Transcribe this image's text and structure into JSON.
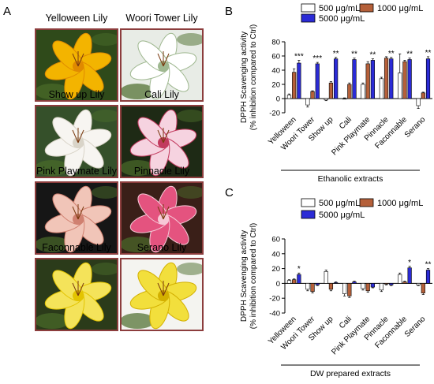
{
  "panels": {
    "a": "A",
    "b": "B",
    "c": "C"
  },
  "lilies": [
    {
      "caption": "Yelloween Lily",
      "colors": [
        "#2f4a1a",
        "#f3b400",
        "#e08a00"
      ]
    },
    {
      "caption": "Woori Tower Lily",
      "colors": [
        "#e8ece6",
        "#ffffff",
        "#9fb890"
      ]
    },
    {
      "caption": "Show up Lily",
      "colors": [
        "#35502a",
        "#f7f5f1",
        "#d9d4c8"
      ]
    },
    {
      "caption": "Cali Lily",
      "colors": [
        "#1e2a15",
        "#f6d3e0",
        "#c23a5e"
      ]
    },
    {
      "caption": "Pink Playmate Lily",
      "colors": [
        "#161616",
        "#f1c5b8",
        "#d08070"
      ]
    },
    {
      "caption": "Pinnacle Lily",
      "colors": [
        "#3a1f18",
        "#e4537f",
        "#f6c8d6"
      ]
    },
    {
      "caption": "Faconnable Lily",
      "colors": [
        "#2b3b1a",
        "#f4e35a",
        "#e3c400"
      ]
    },
    {
      "caption": "Serano Lily",
      "colors": [
        "#f4f4f0",
        "#f2df3c",
        "#d3b000"
      ]
    }
  ],
  "chart_data": [
    {
      "type": "bar",
      "panel": "B",
      "categories": [
        "Yelloween",
        "Woori Tower",
        "Show up",
        "Cali",
        "Pink Playmate",
        "Pinnacle",
        "Faconnable",
        "Serano"
      ],
      "ylabel": "DPPH Scavenging activity (% inhibition compared to Ctrl)",
      "ylabel_lines": [
        "DPPH Scavenging activity",
        "(% inhibition compared to Ctrl)"
      ],
      "xlabel": "Ethanolic extracts",
      "ylim": [
        -20,
        80
      ],
      "yticks": [
        -20,
        0,
        20,
        40,
        60,
        80
      ],
      "legend": "top",
      "series": [
        {
          "name": "500 μg/mL",
          "color": "#ffffff",
          "values": [
            5,
            -9,
            -2,
            0,
            20,
            28,
            36,
            -10
          ],
          "errors": [
            1.5,
            3,
            1,
            1,
            2,
            2,
            27,
            4
          ]
        },
        {
          "name": "1000 μg/mL",
          "color": "#b5603a",
          "values": [
            37,
            10,
            22,
            20,
            49,
            57,
            52,
            8
          ],
          "errors": [
            5,
            1,
            2,
            2,
            3,
            2,
            2,
            1
          ]
        },
        {
          "name": "5000 μg/mL",
          "color": "#2b2bd6",
          "values": [
            50,
            49,
            56,
            55,
            54,
            56,
            55,
            56
          ],
          "errors": [
            4,
            2,
            2,
            2,
            2,
            2,
            2,
            3
          ]
        }
      ],
      "significance": [
        "***",
        "***",
        "**",
        "**",
        "**",
        "**",
        "**",
        "**"
      ]
    },
    {
      "type": "bar",
      "panel": "C",
      "categories": [
        "Yelloween",
        "Woori Tower",
        "Show up",
        "Cali",
        "Pink Playmate",
        "Pinnacle",
        "Faconnable",
        "Serano"
      ],
      "ylabel": "DPPH Scavenging activity (% inhibition compared to Ctrl)",
      "ylabel_lines": [
        "DPPH Scavenging activity",
        "(% inhibition compared to Ctrl)"
      ],
      "xlabel": "DW prepared extracts",
      "ylim": [
        -40,
        60
      ],
      "yticks": [
        -40,
        -20,
        0,
        20,
        40,
        60
      ],
      "legend": "top",
      "series": [
        {
          "name": "500 μg/mL",
          "color": "#ffffff",
          "values": [
            4,
            -8,
            16,
            -14,
            -7,
            -9,
            12,
            -2
          ],
          "errors": [
            1,
            2,
            2,
            3,
            2,
            2,
            2,
            1
          ]
        },
        {
          "name": "1000 μg/mL",
          "color": "#b5603a",
          "values": [
            5,
            -11,
            -8,
            -17,
            -10,
            -1,
            2,
            -13
          ],
          "errors": [
            1,
            2,
            2,
            2,
            2,
            1,
            1,
            2
          ]
        },
        {
          "name": "5000 μg/mL",
          "color": "#2b2bd6",
          "values": [
            12,
            -2,
            1,
            2,
            -5,
            -2,
            21,
            18
          ],
          "errors": [
            2,
            1,
            1,
            1,
            1,
            1,
            2,
            2
          ]
        }
      ],
      "significance": [
        "*",
        "",
        "",
        "",
        "",
        "",
        "*",
        "**"
      ]
    }
  ]
}
